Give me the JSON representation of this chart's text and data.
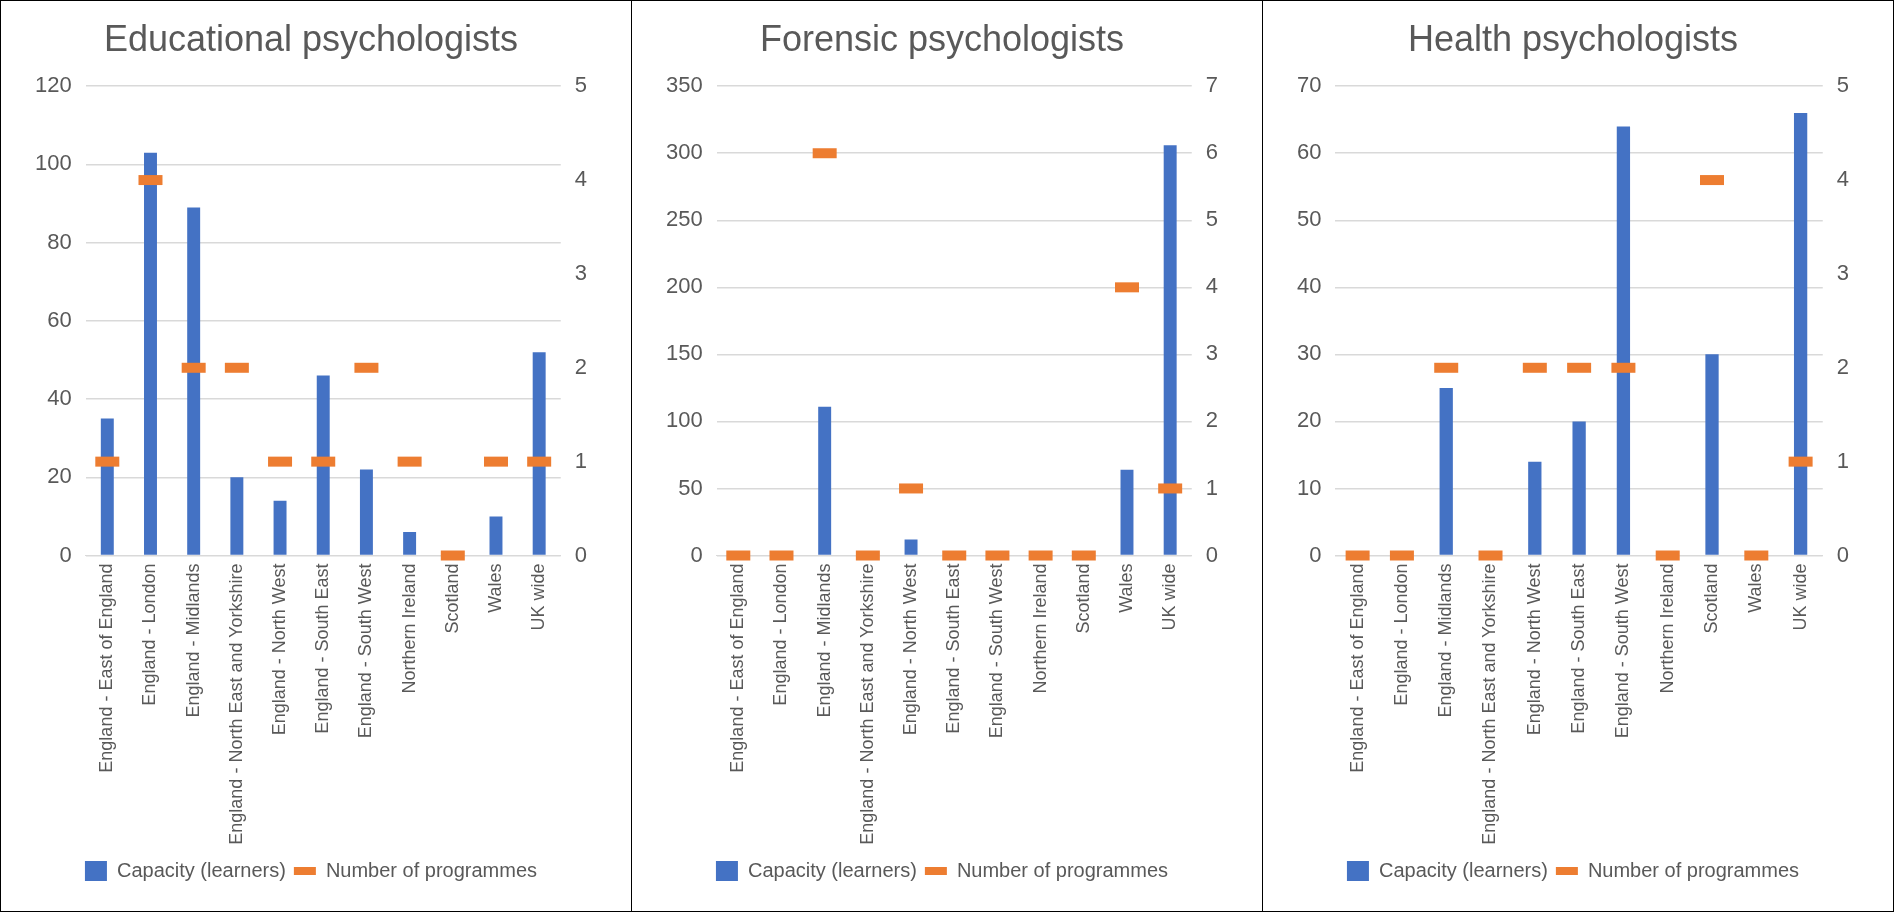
{
  "chart_data": [
    {
      "type": "bar",
      "title": "Educational psychologists",
      "categories": [
        "England - East of England",
        "England - London",
        "England - Midlands",
        "England - North East and Yorkshire",
        "England - North West",
        "England - South East",
        "England - South West",
        "Northern Ireland",
        "Scotland",
        "Wales",
        "UK wide"
      ],
      "series": [
        {
          "name": "Capacity (learners)",
          "color": "#4472c4",
          "values": [
            35,
            103,
            89,
            20,
            14,
            46,
            22,
            6,
            0,
            10,
            52
          ]
        },
        {
          "name": "Number of programmes",
          "type": "scatter",
          "axis": "y2",
          "color": "#ed7d31",
          "values": [
            1,
            4,
            2,
            2,
            1,
            1,
            2,
            1,
            0,
            1,
            1
          ]
        }
      ],
      "ylim": [
        0,
        120
      ],
      "yticks": [
        0,
        20,
        40,
        60,
        80,
        100,
        120
      ],
      "y2lim": [
        0,
        5
      ],
      "y2ticks": [
        0,
        1,
        2,
        3,
        4,
        5
      ],
      "grid": "y",
      "legend": "bottom"
    },
    {
      "type": "bar",
      "title": "Forensic psychologists",
      "categories": [
        "England - East of England",
        "England - London",
        "England - Midlands",
        "England - North East and Yorkshire",
        "England - North West",
        "England - South East",
        "England - South West",
        "Northern Ireland",
        "Scotland",
        "Wales",
        "UK wide"
      ],
      "series": [
        {
          "name": "Capacity (learners)",
          "color": "#4472c4",
          "values": [
            0,
            0,
            111,
            0,
            12,
            0,
            0,
            0,
            0,
            64,
            306
          ]
        },
        {
          "name": "Number of programmes",
          "type": "scatter",
          "axis": "y2",
          "color": "#ed7d31",
          "values": [
            0,
            0,
            6,
            0,
            1,
            0,
            0,
            0,
            0,
            4,
            1
          ]
        }
      ],
      "ylim": [
        0,
        350
      ],
      "yticks": [
        0,
        50,
        100,
        150,
        200,
        250,
        300,
        350
      ],
      "y2lim": [
        0,
        7
      ],
      "y2ticks": [
        0,
        1,
        2,
        3,
        4,
        5,
        6,
        7
      ],
      "grid": "y",
      "legend": "bottom"
    },
    {
      "type": "bar",
      "title": "Health psychologists",
      "categories": [
        "England - East of England",
        "England - London",
        "England - Midlands",
        "England - North East and Yorkshire",
        "England - North West",
        "England - South East",
        "England - South West",
        "Northern Ireland",
        "Scotland",
        "Wales",
        "UK wide"
      ],
      "series": [
        {
          "name": "Capacity (learners)",
          "color": "#4472c4",
          "values": [
            0,
            0,
            25,
            0,
            14,
            20,
            64,
            0,
            30,
            0,
            66
          ]
        },
        {
          "name": "Number of programmes",
          "type": "scatter",
          "axis": "y2",
          "color": "#ed7d31",
          "values": [
            0,
            0,
            2,
            0,
            2,
            2,
            2,
            0,
            4,
            0,
            1
          ]
        }
      ],
      "ylim": [
        0,
        70
      ],
      "yticks": [
        0,
        10,
        20,
        30,
        40,
        50,
        60,
        70
      ],
      "y2lim": [
        0,
        5
      ],
      "y2ticks": [
        0,
        1,
        2,
        3,
        4,
        5
      ],
      "grid": "y",
      "legend": "bottom"
    }
  ]
}
